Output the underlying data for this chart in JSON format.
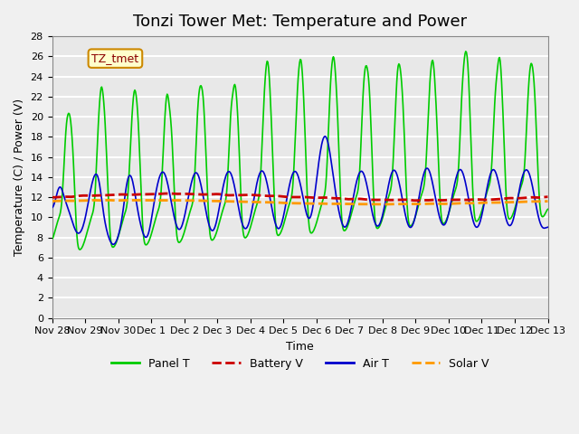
{
  "title": "Tonzi Tower Met: Temperature and Power",
  "xlabel": "Time",
  "ylabel": "Temperature (C) / Power (V)",
  "annotation": "TZ_tmet",
  "xlim_days": [
    0,
    15
  ],
  "ylim": [
    0,
    28
  ],
  "yticks": [
    0,
    2,
    4,
    6,
    8,
    10,
    12,
    14,
    16,
    18,
    20,
    22,
    24,
    26,
    28
  ],
  "xtick_labels": [
    "Nov 28",
    "Nov 29",
    "Nov 30",
    "Dec 1",
    "Dec 2",
    "Dec 3",
    "Dec 4",
    "Dec 5",
    "Dec 6",
    "Dec 7",
    "Dec 8",
    "Dec 9",
    "Dec 10",
    "Dec 11",
    "Dec 12",
    "Dec 13"
  ],
  "xtick_positions": [
    0,
    1,
    2,
    3,
    4,
    5,
    6,
    7,
    8,
    9,
    10,
    11,
    12,
    13,
    14,
    15
  ],
  "legend_labels": [
    "Panel T",
    "Battery V",
    "Air T",
    "Solar V"
  ],
  "line_colors": [
    "#00cc00",
    "#cc0000",
    "#0000cc",
    "#ff9900"
  ],
  "bg_color": "#e8e8e8",
  "grid_color": "#ffffff",
  "title_fontsize": 13,
  "axis_fontsize": 9,
  "tick_fontsize": 8,
  "legend_fontsize": 9
}
